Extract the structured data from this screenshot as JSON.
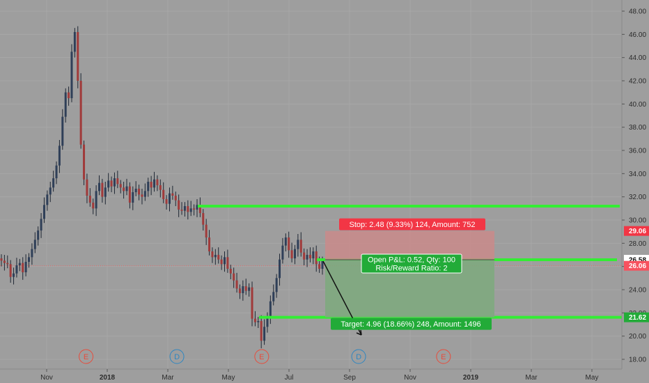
{
  "chart_data": {
    "type": "candlestick",
    "title": "",
    "xlabel": "",
    "ylabel": "",
    "ylim": [
      17.5,
      48.5
    ],
    "grid": true,
    "x_ticks": [
      "Nov",
      "2018",
      "Mar",
      "May",
      "Jul",
      "Sep",
      "Nov",
      "2019",
      "Mar",
      "May"
    ],
    "y_ticks": [
      18.0,
      20.0,
      22.0,
      24.0,
      26.0,
      28.0,
      30.0,
      32.0,
      34.0,
      36.0,
      38.0,
      40.0,
      42.0,
      44.0,
      46.0,
      48.0
    ],
    "price_tags": [
      {
        "label": "29.06",
        "value": 29.06,
        "color": "#f23645"
      },
      {
        "label": "26.58",
        "value": 26.58,
        "color": "#ffffff"
      },
      {
        "label": "26.06",
        "value": 26.06,
        "color": "#f7525f"
      },
      {
        "label": "21.62",
        "value": 21.62,
        "color": "#22ab38"
      }
    ],
    "events": [
      {
        "letter": "E",
        "month_index": 1.3,
        "color": "#e74c3c"
      },
      {
        "letter": "D",
        "month_index": 4.3,
        "color": "#2e86c1"
      },
      {
        "letter": "E",
        "month_index": 7.1,
        "color": "#e74c3c"
      },
      {
        "letter": "D",
        "month_index": 10.3,
        "color": "#2e86c1"
      },
      {
        "letter": "E",
        "month_index": 13.1,
        "color": "#e74c3c"
      }
    ],
    "horizontal_lines": [
      {
        "name": "resistance",
        "value": 31.2,
        "color": "#33ee33"
      },
      {
        "name": "entry",
        "value": 26.58,
        "color": "#33ee33"
      },
      {
        "name": "target-line",
        "value": 21.62,
        "color": "#33ee33"
      }
    ],
    "position": {
      "entry": 26.58,
      "stop": 29.06,
      "target": 21.62,
      "stop_label": "Stop: 2.48 (9.33%) 124, Amount: 752",
      "pnl_label": "Open P&L: 0.52, Qty: 100",
      "ratio_label": "Risk/Reward Ratio: 2",
      "target_label": "Target: 4.96 (18.66%) 248, Amount: 1496"
    },
    "current_price": 26.06,
    "series": [
      {
        "values": [
          26.5,
          26.3,
          26.2,
          25.1,
          25.4,
          26.1,
          26.3,
          25.5,
          26.4,
          26.8,
          27.5,
          28.3,
          29.1,
          30.1,
          31.3,
          32.2,
          32.8,
          33.6,
          34.7,
          36.4,
          38.9,
          41.0,
          40.5,
          44.5,
          46.2,
          42.0,
          36.5,
          33.5,
          32.1,
          31.5,
          31.0,
          32.5,
          33.2,
          32.0,
          32.8,
          33.4,
          32.9,
          33.6,
          33.1,
          32.8,
          32.5,
          32.9,
          31.5,
          32.4,
          32.7,
          32.2,
          32.0,
          32.5,
          33.3,
          32.8,
          33.5,
          33.0,
          32.6,
          31.8,
          31.4,
          32.3,
          32.1,
          31.7,
          30.9,
          30.8,
          31.2,
          30.7,
          31.0,
          30.9,
          31.3,
          30.6,
          29.6,
          28.5,
          27.3,
          26.8,
          27.0,
          26.6,
          26.2,
          26.8,
          25.8,
          25.4,
          24.8,
          24.1,
          23.7,
          24.3,
          23.9,
          24.2,
          21.5,
          21.2,
          21.3,
          19.6,
          20.8,
          21.7,
          23.0,
          23.8,
          25.0,
          26.6,
          27.8,
          28.5,
          27.4,
          26.7,
          27.5,
          28.3,
          27.2,
          26.6,
          27.0,
          26.7,
          27.3,
          26.2,
          25.8,
          26.5
        ]
      }
    ]
  }
}
